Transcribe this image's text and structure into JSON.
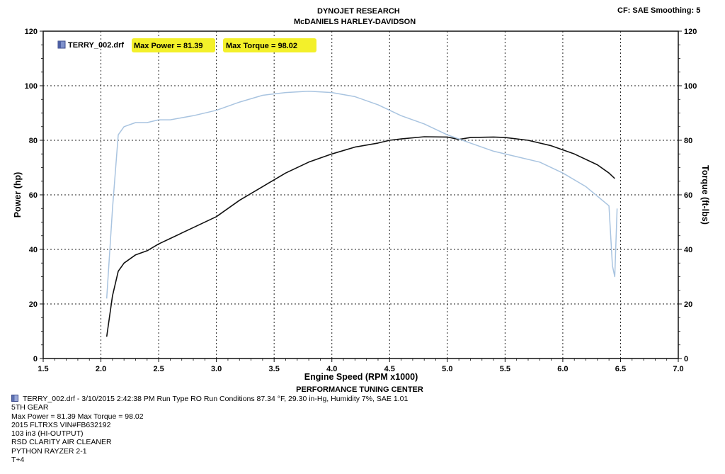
{
  "header": {
    "title": "DYNOJET RESEARCH",
    "subtitle": "McDANIELS HARLEY-DAVIDSON",
    "settings": "CF: SAE  Smoothing: 5",
    "footer_title": "PERFORMANCE TUNING CENTER"
  },
  "colors": {
    "power": "#111111",
    "torque": "#a9c4e0",
    "highlight": "#f3f02a",
    "grid": "#222222"
  },
  "chart_data": {
    "type": "line",
    "xlabel": "Engine Speed (RPM x1000)",
    "ylabel": "Power (hp)",
    "ylabel_right": "Torque (ft-lbs)",
    "xlim": [
      1.5,
      7.0
    ],
    "ylim": [
      0,
      120
    ],
    "y2lim": [
      0,
      120
    ],
    "x_ticks": [
      "1.5",
      "2.0",
      "2.5",
      "3.0",
      "3.5",
      "4.0",
      "4.5",
      "5.0",
      "5.5",
      "6.0",
      "6.5",
      "7.0"
    ],
    "y_ticks": [
      "0",
      "20",
      "40",
      "60",
      "80",
      "100",
      "120"
    ],
    "grid": true,
    "legend": {
      "run": "TERRY_002.drf",
      "max_power": "Max Power = 81.39",
      "max_torque": "Max Torque = 98.02",
      "placement": "top-left"
    },
    "series": [
      {
        "name": "Power (hp)",
        "axis": "left",
        "x": [
          2.05,
          2.1,
          2.15,
          2.2,
          2.3,
          2.4,
          2.5,
          2.6,
          2.8,
          3.0,
          3.2,
          3.4,
          3.6,
          3.8,
          4.0,
          4.2,
          4.4,
          4.5,
          4.6,
          4.8,
          5.0,
          5.1,
          5.2,
          5.4,
          5.5,
          5.7,
          5.9,
          6.1,
          6.3,
          6.4,
          6.45
        ],
        "values": [
          8,
          23,
          32,
          35,
          38,
          39.5,
          42,
          44,
          48,
          52,
          58,
          63,
          68,
          72,
          75,
          77.5,
          79,
          80,
          80.5,
          81.3,
          81.2,
          80.3,
          81,
          81.2,
          81,
          80,
          78,
          75,
          71,
          68,
          66
        ]
      },
      {
        "name": "Torque (ft-lbs)",
        "axis": "right",
        "x": [
          2.05,
          2.1,
          2.15,
          2.2,
          2.3,
          2.4,
          2.5,
          2.6,
          2.8,
          3.0,
          3.2,
          3.4,
          3.6,
          3.8,
          4.0,
          4.2,
          4.4,
          4.6,
          4.8,
          5.0,
          5.2,
          5.4,
          5.6,
          5.8,
          6.0,
          6.2,
          6.4,
          6.43,
          6.45,
          6.47
        ],
        "values": [
          22,
          55,
          82,
          85,
          86.5,
          86.5,
          87.5,
          87.5,
          89,
          91,
          94,
          96.5,
          97.5,
          98,
          97.5,
          96,
          93,
          89,
          86,
          82,
          79,
          76,
          74,
          72,
          68,
          63,
          56,
          34,
          30,
          55
        ]
      }
    ]
  },
  "footer": {
    "run_line": "TERRY_002.drf - 3/10/2015 2:42:38 PM  Run Type  RO  Run Conditions  87.34 °F, 29.30 in-Hg,  Humidity  7%, SAE  1.01",
    "lines": [
      "5TH GEAR",
      "Max Power = 81.39  Max Torque = 98.02",
      "2015 FLTRXS VIN#FB632192",
      "103 in3 (HI-OUTPUT)",
      "RSD CLARITY AIR CLEANER",
      "PYTHON RAYZER 2-1",
      "T+4"
    ]
  }
}
